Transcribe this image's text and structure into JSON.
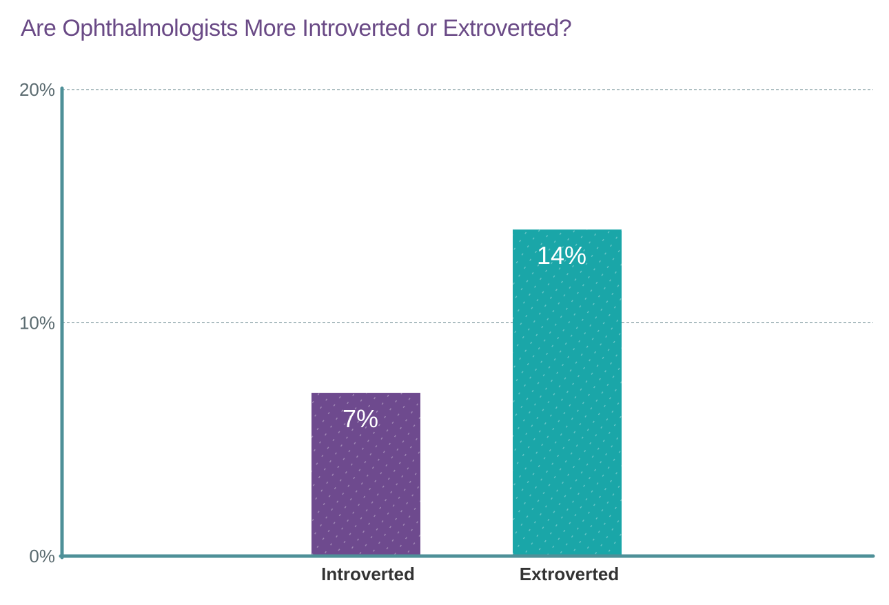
{
  "chart_data": {
    "type": "bar",
    "title": "Are Ophthalmologists More Introverted or Extroverted?",
    "categories": [
      "Introverted",
      "Extroverted"
    ],
    "values": [
      7,
      14
    ],
    "data_labels": [
      "7%",
      "14%"
    ],
    "bar_colors": [
      "#6e4a8e",
      "#1aa6a8"
    ],
    "ylim": [
      0,
      20
    ],
    "y_ticks": [
      0,
      10,
      20
    ],
    "y_tick_labels": [
      "0%",
      "10%",
      "20%"
    ],
    "grid": true,
    "legend": "none",
    "axis_color": "#4e9098",
    "title_color": "#6a4a86"
  }
}
